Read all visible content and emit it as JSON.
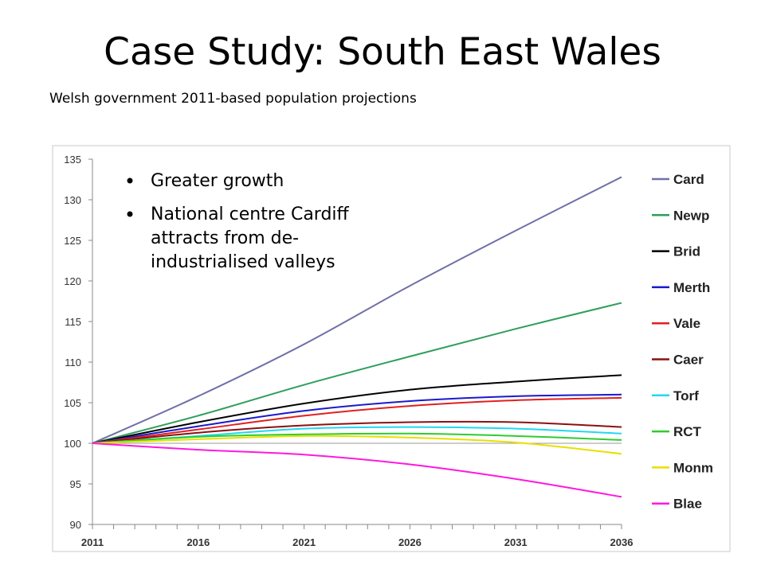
{
  "slide": {
    "title": "Case Study: South East Wales",
    "subtitle": "Welsh government 2011-based population projections",
    "bullets": [
      [
        "Greater growth"
      ],
      [
        "National centre Cardiff",
        "attracts from de-",
        "industrialised valleys"
      ]
    ]
  },
  "chart_data": {
    "type": "line",
    "xlim": [
      2011,
      2036
    ],
    "ylim": [
      90,
      135
    ],
    "x_ticks": [
      2011,
      2016,
      2021,
      2026,
      2031,
      2036
    ],
    "y_ticks": [
      90,
      95,
      100,
      105,
      110,
      115,
      120,
      125,
      130,
      135
    ],
    "grid": false,
    "legend": "right",
    "x": [
      2011,
      2016,
      2021,
      2026,
      2031,
      2036
    ],
    "series": [
      {
        "name": "Card",
        "color": "#7070a8",
        "values": [
          100,
          105.8,
          112.2,
          119.4,
          126.2,
          132.8
        ]
      },
      {
        "name": "Newp",
        "color": "#2e9e5b",
        "values": [
          100,
          103.4,
          107.2,
          110.7,
          114.1,
          117.3
        ]
      },
      {
        "name": "Brid",
        "color": "#000000",
        "values": [
          100,
          102.6,
          104.9,
          106.6,
          107.6,
          108.4
        ]
      },
      {
        "name": "Merth",
        "color": "#1a1acc",
        "values": [
          100,
          102.1,
          104.0,
          105.2,
          105.8,
          106.0
        ]
      },
      {
        "name": "Vale",
        "color": "#e02020",
        "values": [
          100,
          101.7,
          103.4,
          104.6,
          105.3,
          105.6
        ]
      },
      {
        "name": "Caer",
        "color": "#8b1010",
        "values": [
          100,
          101.3,
          102.2,
          102.6,
          102.6,
          102.0
        ]
      },
      {
        "name": "Torf",
        "color": "#22d8f0",
        "values": [
          100,
          100.9,
          101.8,
          102.0,
          101.8,
          101.2
        ]
      },
      {
        "name": "RCT",
        "color": "#2ecc2e",
        "values": [
          100,
          100.8,
          101.1,
          101.2,
          100.9,
          100.4
        ]
      },
      {
        "name": "Monm",
        "color": "#e8e000",
        "values": [
          100,
          100.5,
          100.9,
          100.7,
          100.1,
          98.7
        ]
      },
      {
        "name": "Blae",
        "color": "#ff18e0",
        "values": [
          100,
          99.2,
          98.6,
          97.4,
          95.6,
          93.4
        ]
      }
    ]
  }
}
